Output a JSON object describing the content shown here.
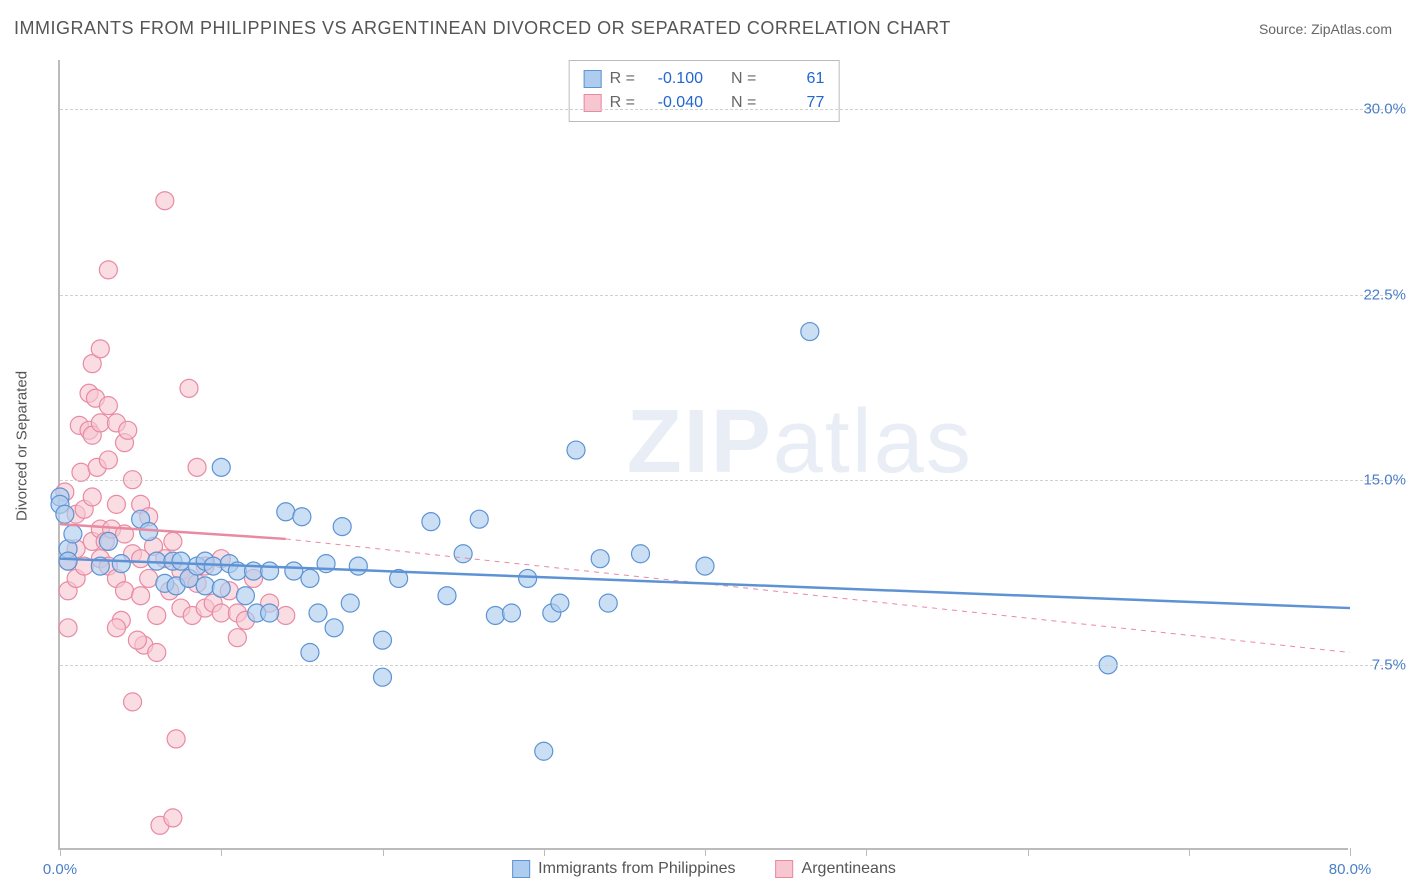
{
  "title": "IMMIGRANTS FROM PHILIPPINES VS ARGENTINEAN DIVORCED OR SEPARATED CORRELATION CHART",
  "source": "Source: ZipAtlas.com",
  "watermark": {
    "zip": "ZIP",
    "atlas": "atlas"
  },
  "y_axis_label": "Divorced or Separated",
  "chart": {
    "type": "scatter",
    "xlim": [
      0,
      80
    ],
    "ylim": [
      0,
      32
    ],
    "x_ticks": [
      0,
      10,
      20,
      30,
      40,
      50,
      60,
      70,
      80
    ],
    "x_tick_labels": {
      "0": "0.0%",
      "80": "80.0%"
    },
    "y_ticks": [
      7.5,
      15.0,
      22.5,
      30.0
    ],
    "y_tick_labels": [
      "7.5%",
      "15.0%",
      "22.5%",
      "30.0%"
    ],
    "grid_color": "#d0d0d0",
    "axis_color": "#bbbbbb",
    "background_color": "#ffffff",
    "marker_radius": 9,
    "marker_stroke_width": 1.2,
    "trend_solid_width": 2.5,
    "trend_dash_width": 1,
    "trend_dash_pattern": "5,5"
  },
  "series": {
    "blue": {
      "label": "Immigrants from Philippines",
      "fill": "#aeccee",
      "stroke": "#5d93d4",
      "fill_opacity": 0.65,
      "R": "-0.100",
      "N": "61",
      "trend": {
        "x1": 0,
        "y1": 11.8,
        "x2": 80,
        "y2": 9.8,
        "dash_x1": 0,
        "dash_x2": 80
      },
      "points": [
        [
          0,
          14.3
        ],
        [
          0,
          14.0
        ],
        [
          0.3,
          13.6
        ],
        [
          0.5,
          12.2
        ],
        [
          0.5,
          11.7
        ],
        [
          0.8,
          12.8
        ],
        [
          3.8,
          11.6
        ],
        [
          5.0,
          13.4
        ],
        [
          5.5,
          12.9
        ],
        [
          6.0,
          11.7
        ],
        [
          6.5,
          10.8
        ],
        [
          7.0,
          11.7
        ],
        [
          7.2,
          10.7
        ],
        [
          7.5,
          11.7
        ],
        [
          8.0,
          11.0
        ],
        [
          8.5,
          11.5
        ],
        [
          9.0,
          11.7
        ],
        [
          9.0,
          10.7
        ],
        [
          9.5,
          11.5
        ],
        [
          10.0,
          10.6
        ],
        [
          10.0,
          15.5
        ],
        [
          10.5,
          11.6
        ],
        [
          11.0,
          11.3
        ],
        [
          11.5,
          10.3
        ],
        [
          12.0,
          11.3
        ],
        [
          12.2,
          9.6
        ],
        [
          13.0,
          11.3
        ],
        [
          13.0,
          9.6
        ],
        [
          14.0,
          13.7
        ],
        [
          14.5,
          11.3
        ],
        [
          15.0,
          13.5
        ],
        [
          15.5,
          11.0
        ],
        [
          15.5,
          8.0
        ],
        [
          16.0,
          9.6
        ],
        [
          16.5,
          11.6
        ],
        [
          17.0,
          9.0
        ],
        [
          17.5,
          13.1
        ],
        [
          18.0,
          10.0
        ],
        [
          18.5,
          11.5
        ],
        [
          20.0,
          8.5
        ],
        [
          20.0,
          7.0
        ],
        [
          21.0,
          11.0
        ],
        [
          23.0,
          13.3
        ],
        [
          24.0,
          10.3
        ],
        [
          25.0,
          12.0
        ],
        [
          26.0,
          13.4
        ],
        [
          27.0,
          9.5
        ],
        [
          28.0,
          9.6
        ],
        [
          29.0,
          11.0
        ],
        [
          30.0,
          4.0
        ],
        [
          30.5,
          9.6
        ],
        [
          31.0,
          10.0
        ],
        [
          32.0,
          16.2
        ],
        [
          33.5,
          11.8
        ],
        [
          34.0,
          10.0
        ],
        [
          36.0,
          12.0
        ],
        [
          40.0,
          11.5
        ],
        [
          46.5,
          21.0
        ],
        [
          65.0,
          7.5
        ],
        [
          2.5,
          11.5
        ],
        [
          3.0,
          12.5
        ]
      ]
    },
    "pink": {
      "label": "Argentineans",
      "fill": "#f7c6d1",
      "stroke": "#e98aa3",
      "fill_opacity": 0.6,
      "R": "-0.040",
      "N": "77",
      "trend": {
        "x1": 0,
        "y1": 13.2,
        "x2": 14,
        "y2": 12.6,
        "dash_x1": 14,
        "dash_x2": 80,
        "dash_y2": 8.0
      },
      "points": [
        [
          0.3,
          14.5
        ],
        [
          0.5,
          11.7
        ],
        [
          0.5,
          10.5
        ],
        [
          0.5,
          9.0
        ],
        [
          1.0,
          13.6
        ],
        [
          1.0,
          12.2
        ],
        [
          1.0,
          11.0
        ],
        [
          1.2,
          17.2
        ],
        [
          1.3,
          15.3
        ],
        [
          1.5,
          13.8
        ],
        [
          1.5,
          11.5
        ],
        [
          1.8,
          18.5
        ],
        [
          1.8,
          17.0
        ],
        [
          2.0,
          19.7
        ],
        [
          2.0,
          16.8
        ],
        [
          2.0,
          14.3
        ],
        [
          2.0,
          12.5
        ],
        [
          2.2,
          18.3
        ],
        [
          2.3,
          15.5
        ],
        [
          2.5,
          20.3
        ],
        [
          2.5,
          17.3
        ],
        [
          2.5,
          13.0
        ],
        [
          2.5,
          11.8
        ],
        [
          2.8,
          12.5
        ],
        [
          3.0,
          23.5
        ],
        [
          3.0,
          18.0
        ],
        [
          3.0,
          15.8
        ],
        [
          3.0,
          11.5
        ],
        [
          3.2,
          13.0
        ],
        [
          3.5,
          17.3
        ],
        [
          3.5,
          14.0
        ],
        [
          3.5,
          11.0
        ],
        [
          3.8,
          9.3
        ],
        [
          4.0,
          16.5
        ],
        [
          4.0,
          12.8
        ],
        [
          4.0,
          10.5
        ],
        [
          4.2,
          17.0
        ],
        [
          4.5,
          15.0
        ],
        [
          4.5,
          12.0
        ],
        [
          4.5,
          6.0
        ],
        [
          5.0,
          14.0
        ],
        [
          5.0,
          11.8
        ],
        [
          5.0,
          10.3
        ],
        [
          5.2,
          8.3
        ],
        [
          5.5,
          13.5
        ],
        [
          5.5,
          11.0
        ],
        [
          5.8,
          12.3
        ],
        [
          6.0,
          9.5
        ],
        [
          6.0,
          8.0
        ],
        [
          6.2,
          1.0
        ],
        [
          6.5,
          26.3
        ],
        [
          6.5,
          11.8
        ],
        [
          6.8,
          10.5
        ],
        [
          7.0,
          12.5
        ],
        [
          7.0,
          1.3
        ],
        [
          7.2,
          4.5
        ],
        [
          7.5,
          11.3
        ],
        [
          7.5,
          9.8
        ],
        [
          8.0,
          18.7
        ],
        [
          8.0,
          11.0
        ],
        [
          8.2,
          9.5
        ],
        [
          8.5,
          15.5
        ],
        [
          8.5,
          10.8
        ],
        [
          9.0,
          11.5
        ],
        [
          9.0,
          9.8
        ],
        [
          9.5,
          10.0
        ],
        [
          10.0,
          11.8
        ],
        [
          10.0,
          9.6
        ],
        [
          10.5,
          10.5
        ],
        [
          11.0,
          9.6
        ],
        [
          11.0,
          8.6
        ],
        [
          11.5,
          9.3
        ],
        [
          12.0,
          11.0
        ],
        [
          13.0,
          10.0
        ],
        [
          14.0,
          9.5
        ],
        [
          3.5,
          9.0
        ],
        [
          4.8,
          8.5
        ]
      ]
    }
  },
  "stat_legend_labels": {
    "R": "R =",
    "N": "N ="
  }
}
